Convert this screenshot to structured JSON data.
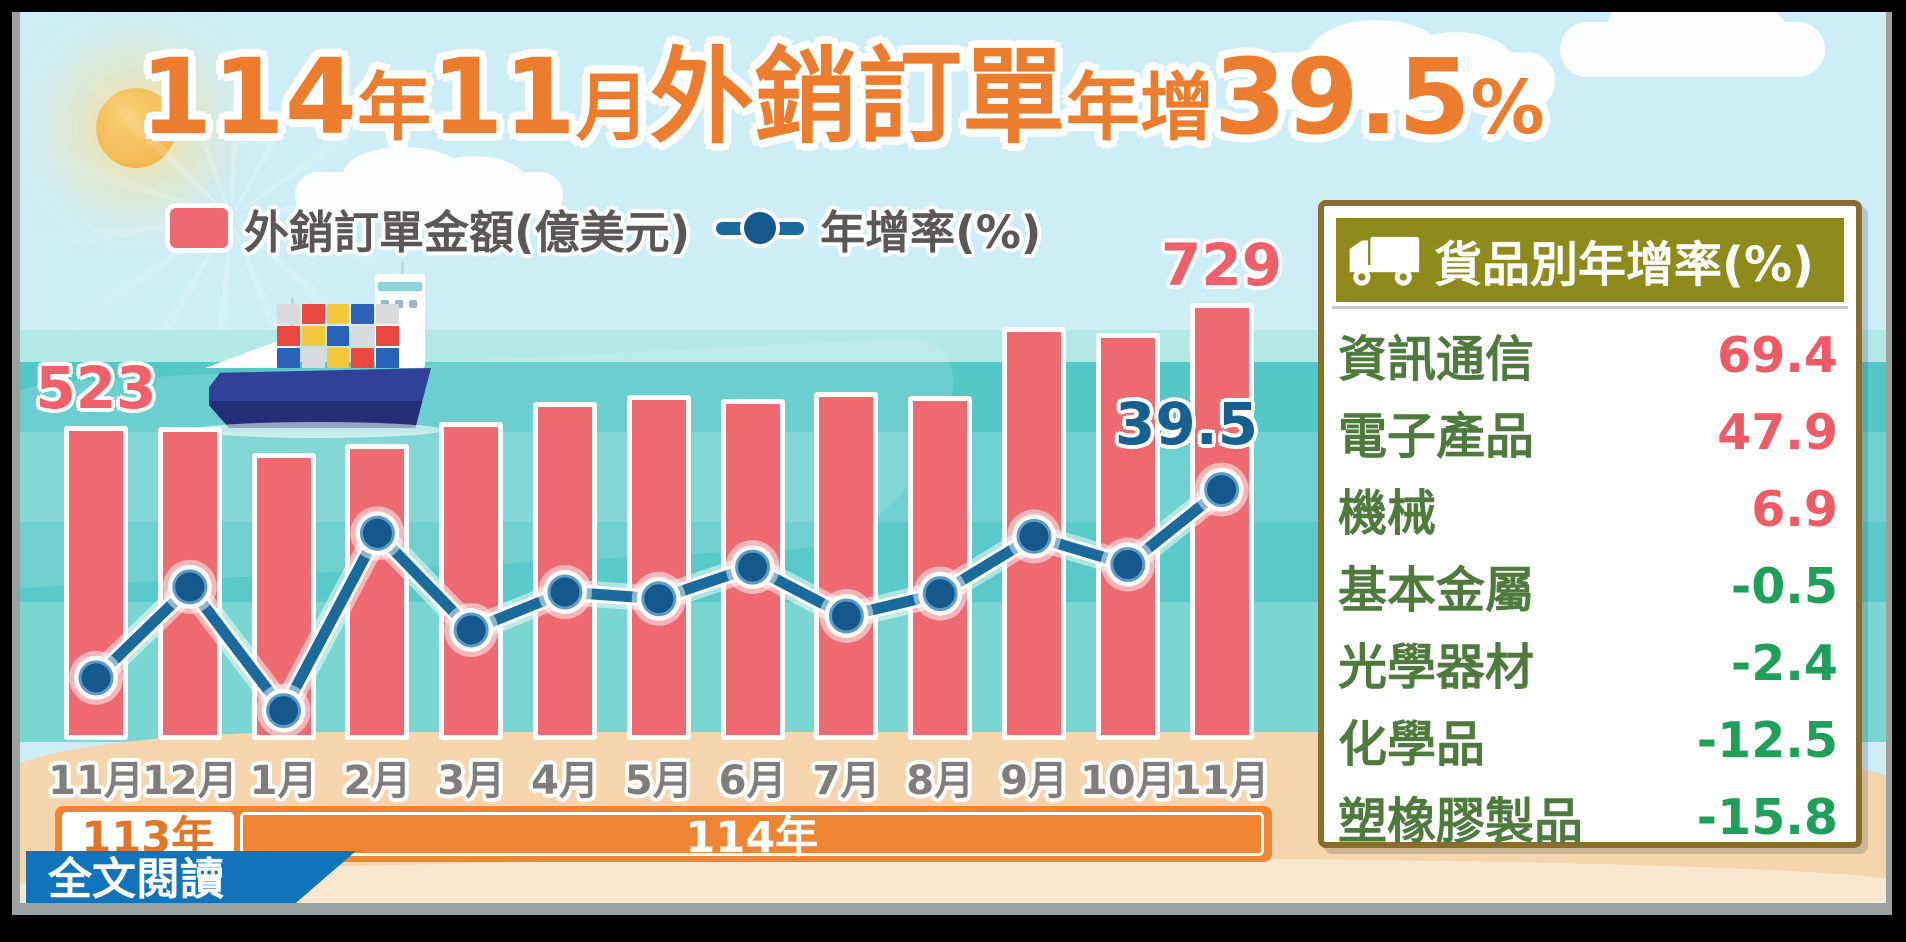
{
  "header": {
    "title_parts": [
      {
        "text": "114",
        "emphasis": true
      },
      {
        "text": "年",
        "emphasis": false
      },
      {
        "text": "11",
        "emphasis": true
      },
      {
        "text": "月",
        "emphasis": false
      },
      {
        "text": "外銷訂單",
        "emphasis": true
      },
      {
        "text": "年增",
        "emphasis": false
      },
      {
        "text": "39.5",
        "emphasis": true
      },
      {
        "text": "%",
        "emphasis": false
      }
    ],
    "title_text": "114年11月外銷訂單年增39.5%"
  },
  "legend": {
    "items": [
      {
        "label": "外銷訂單金額(億美元)",
        "marker": "bar-swatch",
        "color": "#ee6a70"
      },
      {
        "label": "年增率(%)",
        "marker": "line-swatch",
        "color": "#1b6a9c"
      }
    ]
  },
  "chart_data": {
    "type": "bar",
    "title": "114年11月外銷訂單年增39.5%",
    "categories": [
      "11月",
      "12月",
      "1月",
      "2月",
      "3月",
      "4月",
      "5月",
      "6月",
      "7月",
      "8月",
      "9月",
      "10月",
      "11月"
    ],
    "x_groups": [
      {
        "label": "113年",
        "span": 2
      },
      {
        "label": "114年",
        "span": 11
      }
    ],
    "series": [
      {
        "name": "外銷訂單金額(億美元)",
        "kind": "bar",
        "color": "#ee6a70",
        "values": [
          523,
          521,
          478,
          494,
          530,
          564,
          575,
          569,
          580,
          574,
          688,
          678,
          729
        ],
        "data_labels": {
          "0": "523",
          "12": "729"
        },
        "values_estimated_except_labeled": true
      },
      {
        "name": "年增率(%)",
        "kind": "line",
        "color": "#14588c",
        "values": [
          3.3,
          20.8,
          -3.0,
          31.1,
          12.5,
          19.8,
          18.5,
          24.6,
          15.2,
          19.5,
          30.5,
          25.1,
          39.5
        ],
        "data_labels": {
          "12": "39.5"
        },
        "values_estimated_except_labeled": true
      }
    ],
    "legend_position": "top",
    "grid": false
  },
  "panel": {
    "title": "貨品別年增率(%)",
    "icon": "truck-icon",
    "rows": [
      {
        "label": "資訊通信",
        "value": "69.4"
      },
      {
        "label": "電子產品",
        "value": "47.9"
      },
      {
        "label": "機械",
        "value": "6.9"
      },
      {
        "label": "基本金屬",
        "value": "-0.5"
      },
      {
        "label": "光學器材",
        "value": "-2.4"
      },
      {
        "label": "化學品",
        "value": "-12.5"
      },
      {
        "label": "塑橡膠製品",
        "value": "-15.8"
      }
    ]
  },
  "footer": {
    "read_more_label": "全文閱讀"
  },
  "colors": {
    "title_orange": "#ed7d2e",
    "bar_pink": "#ee6a70",
    "line_blue": "#1b6a9c",
    "point_blue": "#14588c",
    "bar_label_pink": "#f0606b",
    "line_label_blue": "#176092",
    "axis_label_gray": "#827d7d",
    "year_band_orange": "#ef8533",
    "button_blue": "#1173b9",
    "panel_border_brown": "#8a6c2b",
    "panel_header_olive": "#908a1d",
    "panel_label_green": "#4e7a3e",
    "positive_value_red": "#ee5b66",
    "negative_value_green": "#1fa05a"
  }
}
